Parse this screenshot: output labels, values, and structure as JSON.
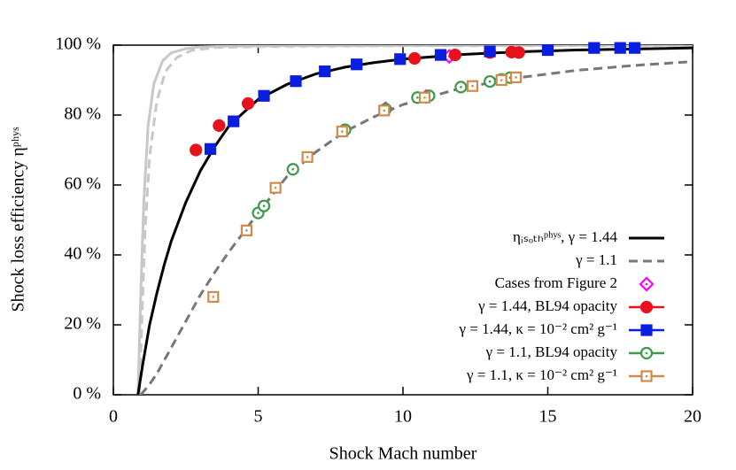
{
  "chart_data": {
    "type": "line",
    "xlabel": "Shock Mach number",
    "ylabel": "Shock loss efficiency ηᵖʰʸˢ",
    "xlim": [
      0,
      20
    ],
    "ylim": [
      0,
      100
    ],
    "xticks": [
      0,
      5,
      10,
      15,
      20
    ],
    "yticks": [
      {
        "value": 0,
        "label": "0 %"
      },
      {
        "value": 20,
        "label": "20 %"
      },
      {
        "value": 40,
        "label": "40 %"
      },
      {
        "value": 60,
        "label": "60 %"
      },
      {
        "value": 80,
        "label": "80 %"
      },
      {
        "value": 100,
        "label": "100 %"
      }
    ],
    "legend": "lower right",
    "series": [
      {
        "color": "#c8c8c8",
        "line": "solid",
        "marker": "none",
        "x": [
          0.85,
          0.95,
          1.05,
          1.2,
          1.4,
          1.7,
          2,
          2.5,
          3,
          4,
          6,
          10,
          20
        ],
        "values": [
          0,
          30,
          55,
          77,
          89,
          95.5,
          97.8,
          99,
          99.5,
          99.7,
          99.8,
          99.9,
          100
        ]
      },
      {
        "color": "#c8c8c8",
        "line": "dashed",
        "marker": "none",
        "x": [
          0.9,
          1.0,
          1.1,
          1.25,
          1.5,
          1.8,
          2.2,
          2.7,
          3.5,
          5,
          10,
          20
        ],
        "values": [
          0,
          25,
          48,
          68,
          84,
          92.5,
          96.5,
          98.5,
          99.3,
          99.6,
          99.8,
          99.9
        ]
      },
      {
        "name": "ηᵢₛₒₜₕᵖʰʸˢ, γ = 1.44",
        "color": "#000000",
        "line": "solid",
        "marker": "none",
        "x": [
          0.85,
          1,
          1.25,
          1.5,
          1.75,
          2,
          2.5,
          3,
          3.5,
          4,
          5,
          6,
          7,
          8,
          9,
          10,
          12,
          14,
          16,
          18,
          20
        ],
        "values": [
          0,
          8,
          20,
          29,
          37,
          44,
          55,
          64,
          71,
          77,
          84.5,
          88.8,
          91.8,
          93.7,
          95,
          96,
          97.3,
          98.1,
          98.6,
          98.9,
          99.2
        ]
      },
      {
        "name": "γ = 1.1",
        "color": "#777777",
        "line": "dashed",
        "marker": "none",
        "x": [
          0.95,
          1.25,
          1.5,
          2,
          2.5,
          3,
          3.5,
          4,
          5,
          6,
          7,
          8,
          9,
          10,
          12,
          14,
          16,
          18,
          20
        ],
        "values": [
          0,
          3,
          6,
          13.5,
          21,
          28.5,
          35,
          41,
          52,
          62.5,
          69.5,
          75.3,
          79.5,
          83,
          87.7,
          90.7,
          92.8,
          94.2,
          95.3
        ]
      },
      {
        "name": "Cases from Figure 2",
        "color": "#ff00ff",
        "line": "none",
        "marker": "diamond",
        "filled": false,
        "x": [
          9.4,
          10.8,
          11.6
        ],
        "values": [
          81.8,
          85.3,
          96.8
        ]
      },
      {
        "name": "γ = 1.44, BL94 opacity",
        "color": "#e8121c",
        "line": "none",
        "marker": "circle",
        "filled": true,
        "x": [
          2.85,
          3.65,
          4.65,
          10.4,
          11.8,
          13.0,
          13.75,
          14.0
        ],
        "values": [
          70,
          77,
          83.3,
          96.2,
          97.2,
          97.9,
          98,
          97.9
        ]
      },
      {
        "name": "γ = 1.44, κ = 10⁻² cm² g⁻¹",
        "color": "#0a1ee0",
        "line": "none",
        "marker": "square",
        "filled": true,
        "x": [
          3.35,
          4.15,
          5.2,
          6.3,
          7.3,
          8.4,
          9.9,
          11.3,
          13.0,
          15.0,
          16.6,
          17.5,
          18.0
        ],
        "values": [
          70.3,
          78.2,
          85.5,
          89.7,
          92.5,
          94.5,
          96,
          97.2,
          98.2,
          98.6,
          99.2,
          99.2,
          99.2
        ]
      },
      {
        "name": "γ = 1.1, BL94 opacity",
        "color": "#3c9a4a",
        "line": "none",
        "marker": "circle",
        "filled": false,
        "x": [
          5.0,
          5.2,
          6.2,
          8.0,
          9.4,
          10.5,
          10.9,
          12.0,
          13.0,
          13.4,
          13.7
        ],
        "values": [
          52,
          54,
          64.5,
          75.8,
          81.7,
          85,
          85.5,
          88,
          89.6,
          90.2,
          90.7
        ]
      },
      {
        "name": "γ = 1.1, κ = 10⁻² cm² g⁻¹",
        "color": "#d08a4a",
        "line": "none",
        "marker": "square",
        "filled": false,
        "x": [
          3.45,
          4.6,
          5.6,
          6.7,
          7.9,
          9.35,
          10.75,
          12.4,
          13.4,
          13.9
        ],
        "values": [
          28,
          47,
          59.2,
          68,
          75.3,
          81.3,
          85,
          88.3,
          90,
          90.8
        ]
      }
    ]
  }
}
